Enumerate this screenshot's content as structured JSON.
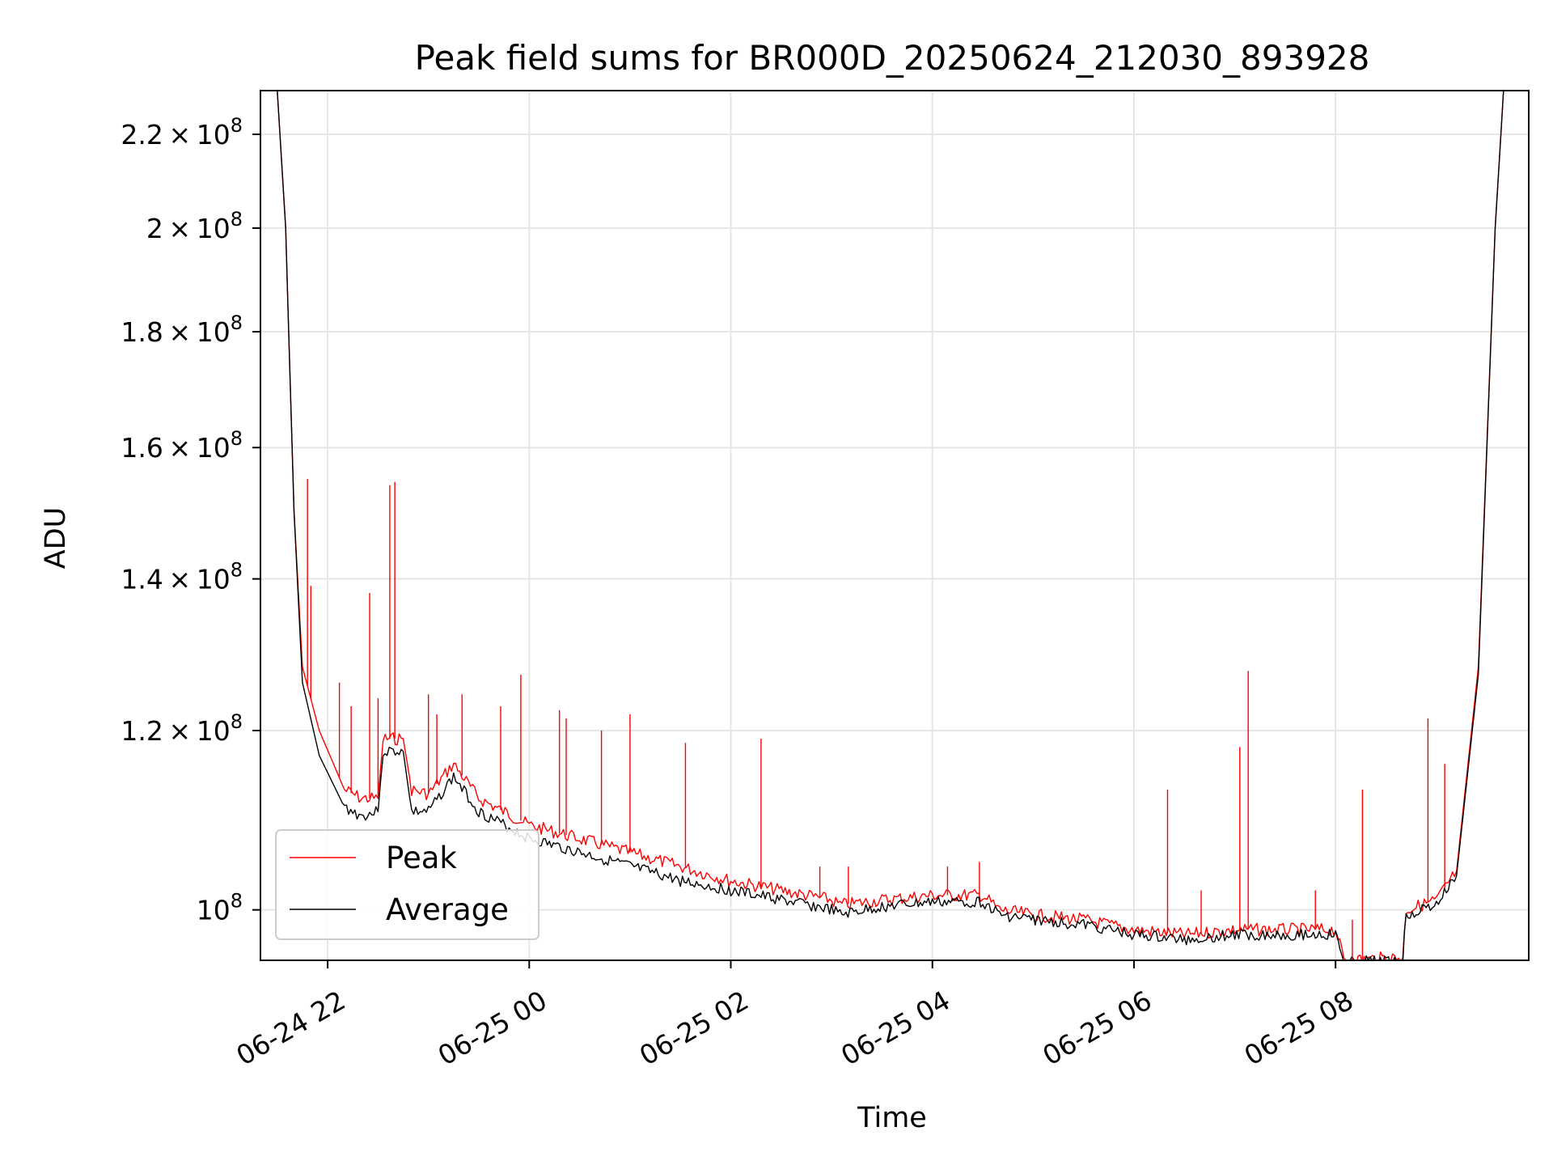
{
  "chart_data": {
    "type": "line",
    "title": "Peak field sums for BR000D_20250624_212030_893928",
    "xlabel": "Time",
    "ylabel": "ADU",
    "x_axis": {
      "type": "time",
      "range": [
        "2025-06-24 21:20",
        "2025-06-25 09:55"
      ],
      "ticks": [
        "2025-06-24 22:00",
        "2025-06-25 00:00",
        "2025-06-25 02:00",
        "2025-06-25 04:00",
        "2025-06-25 06:00",
        "2025-06-25 08:00"
      ],
      "tick_labels": [
        "06-24 22",
        "06-25 00",
        "06-25 02",
        "06-25 04",
        "06-25 06",
        "06-25 08"
      ],
      "tick_label_rotation_deg": 30
    },
    "y_axis": {
      "scale": "log",
      "range": [
        95000000,
        230000000
      ],
      "ticks": [
        100000000,
        120000000,
        140000000,
        160000000,
        180000000,
        200000000,
        220000000
      ],
      "tick_labels": [
        {
          "mantissa": "",
          "exp": "8"
        },
        {
          "mantissa": "1.2",
          "exp": "8"
        },
        {
          "mantissa": "1.4",
          "exp": "8"
        },
        {
          "mantissa": "1.6",
          "exp": "8"
        },
        {
          "mantissa": "1.8",
          "exp": "8"
        },
        {
          "mantissa": "2",
          "exp": "8"
        },
        {
          "mantissa": "2.2",
          "exp": "8"
        }
      ]
    },
    "grid": true,
    "legend_position": "lower-left",
    "series": [
      {
        "name": "Peak",
        "color": "#ff0000",
        "points": [
          [
            "2025-06-24 21:30",
            230000000
          ],
          [
            "2025-06-24 21:35",
            200000000
          ],
          [
            "2025-06-24 21:40",
            150000000
          ],
          [
            "2025-06-24 21:45",
            128000000
          ],
          [
            "2025-06-24 21:55",
            120000000
          ],
          [
            "2025-06-24 22:10",
            113000000
          ],
          [
            "2025-06-24 22:20",
            112000000
          ],
          [
            "2025-06-24 22:30",
            112000000
          ],
          [
            "2025-06-24 22:33",
            119000000
          ],
          [
            "2025-06-24 22:45",
            119000000
          ],
          [
            "2025-06-24 22:50",
            113000000
          ],
          [
            "2025-06-24 23:00",
            112500000
          ],
          [
            "2025-06-24 23:15",
            116000000
          ],
          [
            "2025-06-24 23:30",
            112000000
          ],
          [
            "2025-06-25 00:00",
            109000000
          ],
          [
            "2025-06-25 00:30",
            107500000
          ],
          [
            "2025-06-25 01:00",
            106000000
          ],
          [
            "2025-06-25 01:30",
            104500000
          ],
          [
            "2025-06-25 02:00",
            103000000
          ],
          [
            "2025-06-25 02:30",
            102000000
          ],
          [
            "2025-06-25 03:00",
            101000000
          ],
          [
            "2025-06-25 03:05",
            100500000
          ],
          [
            "2025-06-25 03:30",
            101000000
          ],
          [
            "2025-06-25 04:00",
            101500000
          ],
          [
            "2025-06-25 04:30",
            101500000
          ],
          [
            "2025-06-25 04:40",
            100000000
          ],
          [
            "2025-06-25 05:00",
            99500000
          ],
          [
            "2025-06-25 05:30",
            99000000
          ],
          [
            "2025-06-25 06:00",
            98000000
          ],
          [
            "2025-06-25 06:30",
            97500000
          ],
          [
            "2025-06-25 07:00",
            98000000
          ],
          [
            "2025-06-25 07:30",
            98000000
          ],
          [
            "2025-06-25 08:00",
            98000000
          ],
          [
            "2025-06-25 08:05",
            95000000
          ],
          [
            "2025-06-25 08:40",
            95300000
          ],
          [
            "2025-06-25 08:42",
            100000000
          ],
          [
            "2025-06-25 09:00",
            101000000
          ],
          [
            "2025-06-25 09:12",
            104000000
          ],
          [
            "2025-06-25 09:25",
            128000000
          ],
          [
            "2025-06-25 09:35",
            200000000
          ],
          [
            "2025-06-25 09:40",
            230000000
          ]
        ],
        "spikes": [
          [
            "2025-06-24 21:48",
            155000000
          ],
          [
            "2025-06-24 21:50",
            139000000
          ],
          [
            "2025-06-24 22:07",
            126000000
          ],
          [
            "2025-06-24 22:14",
            123000000
          ],
          [
            "2025-06-24 22:25",
            138000000
          ],
          [
            "2025-06-24 22:30",
            124000000
          ],
          [
            "2025-06-24 22:37",
            154000000
          ],
          [
            "2025-06-24 22:40",
            154500000
          ],
          [
            "2025-06-24 23:00",
            124500000
          ],
          [
            "2025-06-24 23:05",
            122000000
          ],
          [
            "2025-06-24 23:20",
            124500000
          ],
          [
            "2025-06-24 23:43",
            123000000
          ],
          [
            "2025-06-24 23:55",
            127000000
          ],
          [
            "2025-06-25 00:18",
            122500000
          ],
          [
            "2025-06-25 00:22",
            121500000
          ],
          [
            "2025-06-25 00:43",
            120000000
          ],
          [
            "2025-06-25 01:00",
            122000000
          ],
          [
            "2025-06-25 01:33",
            118500000
          ],
          [
            "2025-06-25 02:18",
            119000000
          ],
          [
            "2025-06-25 02:53",
            104500000
          ],
          [
            "2025-06-25 03:10",
            104500000
          ],
          [
            "2025-06-25 04:09",
            104500000
          ],
          [
            "2025-06-25 04:28",
            105000000
          ],
          [
            "2025-06-25 06:20",
            113000000
          ],
          [
            "2025-06-25 06:40",
            102000000
          ],
          [
            "2025-06-25 07:03",
            118000000
          ],
          [
            "2025-06-25 07:08",
            127500000
          ],
          [
            "2025-06-25 07:48",
            102000000
          ],
          [
            "2025-06-25 08:10",
            99000000
          ],
          [
            "2025-06-25 08:16",
            113000000
          ],
          [
            "2025-06-25 08:55",
            121500000
          ],
          [
            "2025-06-25 09:05",
            116000000
          ]
        ]
      },
      {
        "name": "Average",
        "color": "#000000",
        "points": [
          [
            "2025-06-24 21:30",
            230000000
          ],
          [
            "2025-06-24 21:35",
            200000000
          ],
          [
            "2025-06-24 21:40",
            150000000
          ],
          [
            "2025-06-24 21:45",
            126000000
          ],
          [
            "2025-06-24 21:55",
            117000000
          ],
          [
            "2025-06-24 22:10",
            111000000
          ],
          [
            "2025-06-24 22:20",
            110000000
          ],
          [
            "2025-06-24 22:30",
            110500000
          ],
          [
            "2025-06-24 22:33",
            117500000
          ],
          [
            "2025-06-24 22:45",
            117500000
          ],
          [
            "2025-06-24 22:50",
            110500000
          ],
          [
            "2025-06-24 23:00",
            110500000
          ],
          [
            "2025-06-24 23:15",
            114500000
          ],
          [
            "2025-06-24 23:30",
            110500000
          ],
          [
            "2025-06-25 00:00",
            107500000
          ],
          [
            "2025-06-25 00:30",
            106000000
          ],
          [
            "2025-06-25 01:00",
            104500000
          ],
          [
            "2025-06-25 01:30",
            103000000
          ],
          [
            "2025-06-25 02:00",
            102000000
          ],
          [
            "2025-06-25 02:30",
            101000000
          ],
          [
            "2025-06-25 03:00",
            100000000
          ],
          [
            "2025-06-25 03:05",
            99500000
          ],
          [
            "2025-06-25 03:30",
            100300000
          ],
          [
            "2025-06-25 04:00",
            100800000
          ],
          [
            "2025-06-25 04:30",
            100800000
          ],
          [
            "2025-06-25 04:40",
            99500000
          ],
          [
            "2025-06-25 05:00",
            99000000
          ],
          [
            "2025-06-25 05:30",
            98500000
          ],
          [
            "2025-06-25 06:00",
            97500000
          ],
          [
            "2025-06-25 06:30",
            97000000
          ],
          [
            "2025-06-25 07:00",
            97500000
          ],
          [
            "2025-06-25 07:30",
            97500000
          ],
          [
            "2025-06-25 08:00",
            97500000
          ],
          [
            "2025-06-25 08:05",
            94800000
          ],
          [
            "2025-06-25 08:40",
            95000000
          ],
          [
            "2025-06-25 08:42",
            99500000
          ],
          [
            "2025-06-25 09:00",
            100500000
          ],
          [
            "2025-06-25 09:12",
            103500000
          ],
          [
            "2025-06-25 09:25",
            127000000
          ],
          [
            "2025-06-25 09:35",
            200000000
          ],
          [
            "2025-06-25 09:40",
            230000000
          ]
        ]
      }
    ]
  }
}
